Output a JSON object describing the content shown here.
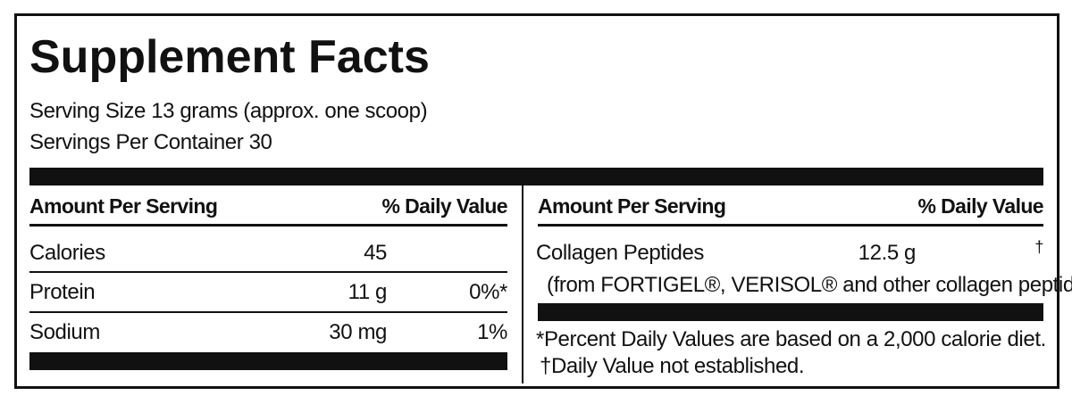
{
  "header": {
    "title": "Supplement Facts",
    "serving_size": "Serving Size 13 grams (approx. one scoop)",
    "servings_per_container": "Servings Per Container 30"
  },
  "left_table": {
    "headers": [
      "Amount Per Serving",
      "% Daily Value"
    ],
    "rows": [
      [
        "Calories",
        "45",
        ""
      ],
      [
        "Protein",
        "11 g",
        "0%*"
      ],
      [
        "Sodium",
        "30 mg",
        "1%"
      ]
    ]
  },
  "right_table": {
    "headers": [
      "Amount Per Serving",
      "% Daily Value"
    ],
    "rows": [
      [
        "Collagen Peptides",
        "12.5 g",
        "†"
      ]
    ],
    "note": "(from FORTIGEL®, VERISOL® and other collagen peptides)"
  },
  "footnotes": [
    "*Percent Daily Values are based on a 2,000 calorie diet.",
    "†Daily Value not established."
  ]
}
